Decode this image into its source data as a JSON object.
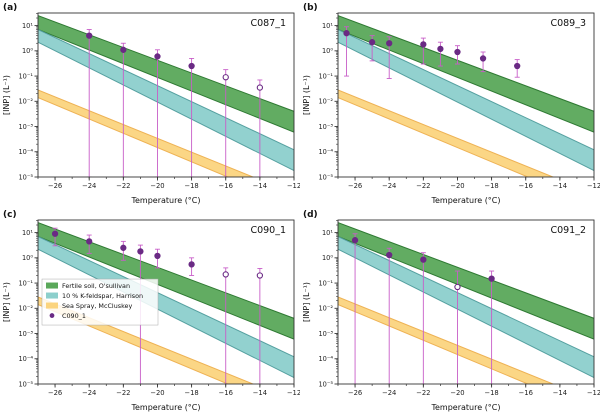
{
  "figure": {
    "xlabel": "Temperature (°C)",
    "ylabel": "[INP] (L⁻¹)",
    "background": "#ffffff",
    "axis_color": "#333333",
    "point_color": "#6a2a84",
    "point_open_fill": "#ffffff",
    "errorbar_color": "#c85ec8"
  },
  "legend": {
    "panel_index": 2,
    "entries": [
      {
        "label": "Fertile soil, O'sullivan",
        "type": "band",
        "color": "#5aa85a"
      },
      {
        "label": "10 % K-feldspar, Harrison",
        "type": "band",
        "color": "#8ccfcc"
      },
      {
        "label": "Sea Spray, McCluskey",
        "type": "band",
        "color": "#fbd47e"
      },
      {
        "label": "C090_1",
        "type": "point",
        "color": "#6a2a84"
      }
    ]
  },
  "reference_bands": [
    {
      "name": "Fertile soil, O'sullivan",
      "color": "#5aa85a",
      "edge": "#2f7a33",
      "x": [
        -27,
        -12
      ],
      "upper": [
        25,
        0.004
      ],
      "lower": [
        7,
        0.0006
      ]
    },
    {
      "name": "10 % K-feldspar, Harrison",
      "color": "#8ccfcc",
      "edge": "#55a0a0",
      "x": [
        -27,
        -12
      ],
      "upper": [
        7,
        0.00012
      ],
      "lower": [
        2.2,
        1.8e-05
      ]
    },
    {
      "name": "Sea Spray, McCluskey",
      "color": "#fbd47e",
      "edge": "#eeb254",
      "x": [
        -27,
        -12
      ],
      "upper": [
        0.028,
        2.2e-06
      ],
      "lower": [
        0.014,
        8e-07
      ]
    }
  ],
  "chart_data": [
    {
      "type": "scatter",
      "panel_label": "(a)",
      "title": "C087_1",
      "x_axis": {
        "label": "Temperature (°C)",
        "min": -27,
        "max": -12,
        "ticks": [
          -26,
          -24,
          -22,
          -20,
          -18,
          -16,
          -14,
          -12
        ]
      },
      "y_axis": {
        "label": "[INP] (L⁻¹)",
        "log": true,
        "min": 1e-05,
        "max": 31.6,
        "decade_exponents": [
          1,
          0,
          -1,
          -2,
          -3,
          -4,
          -5
        ]
      },
      "points": [
        {
          "t": -24,
          "inp": 4.0,
          "filled": true,
          "err_lo": 1e-05,
          "err_hi": 7.0
        },
        {
          "t": -22,
          "inp": 1.1,
          "filled": true,
          "err_lo": 1e-05,
          "err_hi": 2.0
        },
        {
          "t": -20,
          "inp": 0.6,
          "filled": true,
          "err_lo": 1e-05,
          "err_hi": 1.1
        },
        {
          "t": -18,
          "inp": 0.25,
          "filled": true,
          "err_lo": 1e-05,
          "err_hi": 0.5
        },
        {
          "t": -16,
          "inp": 0.09,
          "filled": false,
          "err_lo": 1e-05,
          "err_hi": 0.18
        },
        {
          "t": -14,
          "inp": 0.035,
          "filled": false,
          "err_lo": 1e-05,
          "err_hi": 0.07
        }
      ]
    },
    {
      "type": "scatter",
      "panel_label": "(b)",
      "title": "C089_3",
      "x_axis": {
        "label": "Temperature (°C)",
        "min": -27,
        "max": -12,
        "ticks": [
          -26,
          -24,
          -22,
          -20,
          -18,
          -16,
          -14,
          -12
        ]
      },
      "y_axis": {
        "label": "[INP] (L⁻¹)",
        "log": true,
        "min": 1e-05,
        "max": 31.6,
        "decade_exponents": [
          1,
          0,
          -1,
          -2,
          -3,
          -4,
          -5
        ]
      },
      "points": [
        {
          "t": -26.5,
          "inp": 5.0,
          "filled": true,
          "err_lo": 0.1,
          "err_hi": 9.0
        },
        {
          "t": -25.0,
          "inp": 2.2,
          "filled": true,
          "err_lo": 0.4,
          "err_hi": 4.0
        },
        {
          "t": -24.0,
          "inp": 2.0,
          "filled": true,
          "err_lo": 0.08,
          "err_hi": 3.6
        },
        {
          "t": -22.0,
          "inp": 1.8,
          "filled": true,
          "err_lo": 0.3,
          "err_hi": 3.2
        },
        {
          "t": -21.0,
          "inp": 1.2,
          "filled": true,
          "err_lo": 0.25,
          "err_hi": 2.2
        },
        {
          "t": -20.0,
          "inp": 0.9,
          "filled": true,
          "err_lo": 0.3,
          "err_hi": 1.6
        },
        {
          "t": -18.5,
          "inp": 0.5,
          "filled": true,
          "err_lo": 0.15,
          "err_hi": 0.9
        },
        {
          "t": -16.5,
          "inp": 0.25,
          "filled": true,
          "err_lo": 0.09,
          "err_hi": 0.45
        }
      ]
    },
    {
      "type": "scatter",
      "panel_label": "(c)",
      "title": "C090_1",
      "x_axis": {
        "label": "Temperature (°C)",
        "min": -27,
        "max": -12,
        "ticks": [
          -26,
          -24,
          -22,
          -20,
          -18,
          -16,
          -14,
          -12
        ]
      },
      "y_axis": {
        "label": "[INP] (L⁻¹)",
        "log": true,
        "min": 1e-05,
        "max": 31.6,
        "decade_exponents": [
          1,
          0,
          -1,
          -2,
          -3,
          -4,
          -5
        ]
      },
      "points": [
        {
          "t": -26,
          "inp": 9.0,
          "filled": true,
          "err_lo": 3.0,
          "err_hi": 15.0
        },
        {
          "t": -24,
          "inp": 4.5,
          "filled": true,
          "err_lo": 1.5,
          "err_hi": 8.0
        },
        {
          "t": -22,
          "inp": 2.5,
          "filled": true,
          "err_lo": 0.8,
          "err_hi": 4.5
        },
        {
          "t": -21,
          "inp": 1.8,
          "filled": true,
          "err_lo": 1e-05,
          "err_hi": 3.2
        },
        {
          "t": -20,
          "inp": 1.2,
          "filled": true,
          "err_lo": 0.4,
          "err_hi": 2.2
        },
        {
          "t": -18,
          "inp": 0.55,
          "filled": true,
          "err_lo": 0.2,
          "err_hi": 1.0
        },
        {
          "t": -16,
          "inp": 0.22,
          "filled": false,
          "err_lo": 1e-05,
          "err_hi": 0.4
        },
        {
          "t": -14,
          "inp": 0.2,
          "filled": false,
          "err_lo": 1e-05,
          "err_hi": 0.38
        }
      ]
    },
    {
      "type": "scatter",
      "panel_label": "(d)",
      "title": "C091_2",
      "x_axis": {
        "label": "Temperature (°C)",
        "min": -27,
        "max": -12,
        "ticks": [
          -26,
          -24,
          -22,
          -20,
          -18,
          -16,
          -14,
          -12
        ]
      },
      "y_axis": {
        "label": "[INP] (L⁻¹)",
        "log": true,
        "min": 1e-05,
        "max": 31.6,
        "decade_exponents": [
          1,
          0,
          -1,
          -2,
          -3,
          -4,
          -5
        ]
      },
      "points": [
        {
          "t": -26,
          "inp": 5.0,
          "filled": true,
          "err_lo": 1e-05,
          "err_hi": 9.0
        },
        {
          "t": -24,
          "inp": 1.3,
          "filled": true,
          "err_lo": 1e-05,
          "err_hi": 2.4
        },
        {
          "t": -22,
          "inp": 0.85,
          "filled": true,
          "err_lo": 1e-05,
          "err_hi": 1.6
        },
        {
          "t": -20,
          "inp": 0.07,
          "filled": false,
          "err_lo": 1e-05,
          "err_hi": 0.3
        },
        {
          "t": -18,
          "inp": 0.15,
          "filled": true,
          "err_lo": 1e-05,
          "err_hi": 0.3
        }
      ]
    }
  ]
}
